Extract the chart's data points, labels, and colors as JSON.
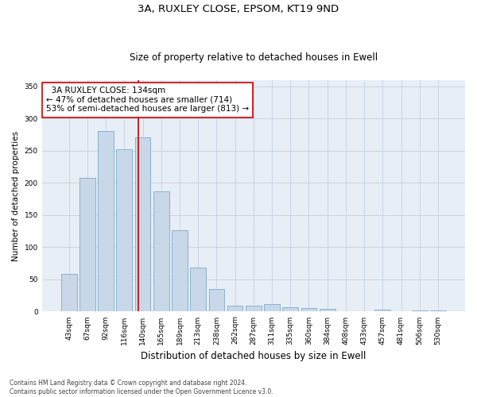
{
  "title": "3A, RUXLEY CLOSE, EPSOM, KT19 9ND",
  "subtitle": "Size of property relative to detached houses in Ewell",
  "xlabel": "Distribution of detached houses by size in Ewell",
  "ylabel": "Number of detached properties",
  "footnote": "Contains HM Land Registry data © Crown copyright and database right 2024.\nContains public sector information licensed under the Open Government Licence v3.0.",
  "categories": [
    "43sqm",
    "67sqm",
    "92sqm",
    "116sqm",
    "140sqm",
    "165sqm",
    "189sqm",
    "213sqm",
    "238sqm",
    "262sqm",
    "287sqm",
    "311sqm",
    "335sqm",
    "360sqm",
    "384sqm",
    "408sqm",
    "433sqm",
    "457sqm",
    "481sqm",
    "506sqm",
    "530sqm"
  ],
  "values": [
    58,
    208,
    280,
    252,
    270,
    187,
    126,
    68,
    35,
    9,
    9,
    12,
    7,
    6,
    4,
    1,
    0,
    3,
    0,
    2,
    2
  ],
  "bar_facecolor": "#c8d8e8",
  "bar_edgecolor": "#7aabcd",
  "property_line_color": "#cc0000",
  "annotation_text": "  3A RUXLEY CLOSE: 134sqm\n← 47% of detached houses are smaller (714)\n53% of semi-detached houses are larger (813) →",
  "annotation_box_edgecolor": "#cc0000",
  "ylim": [
    0,
    360
  ],
  "yticks": [
    0,
    50,
    100,
    150,
    200,
    250,
    300,
    350
  ],
  "background_color": "#ffffff",
  "grid_color": "#c8d4e4",
  "ax_bg_color": "#e8eef5",
  "title_fontsize": 9.5,
  "subtitle_fontsize": 8.5,
  "xlabel_fontsize": 8.5,
  "ylabel_fontsize": 7.5,
  "tick_fontsize": 6.5,
  "annotation_fontsize": 7.5,
  "footnote_fontsize": 5.5
}
